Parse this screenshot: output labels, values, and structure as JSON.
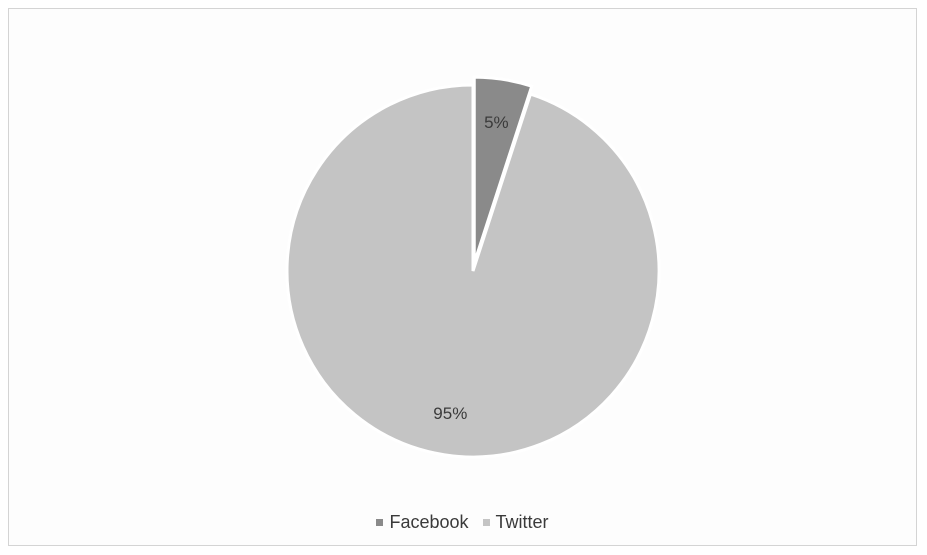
{
  "chart_data": {
    "type": "pie",
    "title": "",
    "categories": [
      "Facebook",
      "Twitter"
    ],
    "values": [
      5,
      95
    ],
    "data_labels": [
      "5%",
      "95%"
    ],
    "colors": [
      "#8a8a8a",
      "#c4c4c4"
    ],
    "exploded_slice": "Facebook",
    "start_angle_deg": 0,
    "legend_position": "bottom"
  }
}
